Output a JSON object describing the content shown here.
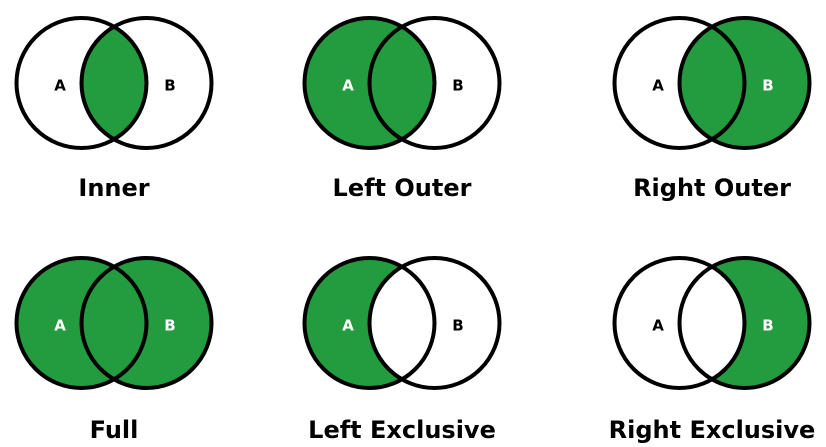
{
  "colors": {
    "fill": "#239b3f",
    "stroke": "#000000",
    "background": "#ffffff",
    "letter_on_fill": "#ffffff",
    "letter_on_white": "#000000"
  },
  "diagrams": [
    {
      "caption": "Inner",
      "left_label": "A",
      "right_label": "B",
      "shade": "intersection"
    },
    {
      "caption": "Left Outer",
      "left_label": "A",
      "right_label": "B",
      "shade": "left"
    },
    {
      "caption": "Right Outer",
      "left_label": "A",
      "right_label": "B",
      "shade": "right"
    },
    {
      "caption": "Full",
      "left_label": "A",
      "right_label": "B",
      "shade": "union"
    },
    {
      "caption": "Left Exclusive",
      "left_label": "A",
      "right_label": "B",
      "shade": "left-only"
    },
    {
      "caption": "Right Exclusive",
      "left_label": "A",
      "right_label": "B",
      "shade": "right-only"
    }
  ]
}
